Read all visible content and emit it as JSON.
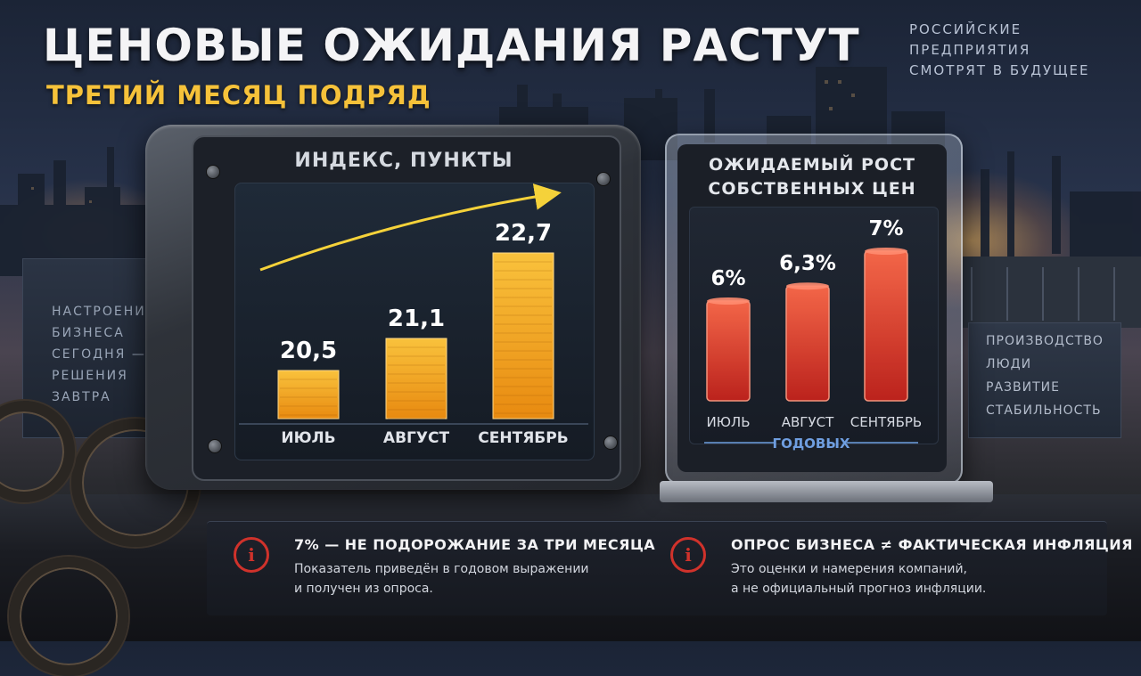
{
  "header": {
    "title": "ЦЕНОВЫЕ ОЖИДАНИЯ РАСТУТ",
    "subtitle": "ТРЕТИЙ МЕСЯЦ ПОДРЯД",
    "tagline": [
      "РОССИЙСКИЕ",
      "ПРЕДПРИЯТИЯ",
      "СМОТРЯТ В БУДУЩЕЕ"
    ]
  },
  "side_left": [
    "НАСТРОЕНИЯ",
    "БИЗНЕСА",
    "СЕГОДНЯ —",
    "РЕШЕНИЯ",
    "ЗАВТРА"
  ],
  "side_right": [
    "ПРОИЗВОДСТВО",
    "ЛЮДИ",
    "РАЗВИТИЕ",
    "СТАБИЛЬНОСТЬ"
  ],
  "chart_data": [
    {
      "type": "bar",
      "title": "ИНДЕКС, ПУНКТЫ",
      "categories": [
        "ИЮЛЬ",
        "АВГУСТ",
        "СЕНТЯБРЬ"
      ],
      "values": [
        20.5,
        21.1,
        22.7
      ],
      "value_labels": [
        "20,5",
        "21,1",
        "22,7"
      ],
      "trend_arrow": true,
      "colors": {
        "bar_top": "#f9c23c",
        "bar_bottom": "#e88a10",
        "arrow": "#f5d23a"
      }
    },
    {
      "type": "bar",
      "title": [
        "ОЖИДАЕМЫЙ РОСТ",
        "СОБСТВЕННЫХ ЦЕН"
      ],
      "categories": [
        "ИЮЛЬ",
        "АВГУСТ",
        "СЕНТЯБРЬ"
      ],
      "values": [
        6,
        6.3,
        7
      ],
      "value_labels": [
        "6%",
        "6,3%",
        "7%"
      ],
      "group_label": "ГОДОВЫХ",
      "colors": {
        "bar_top": "#ff6a4a",
        "bar_bottom": "#c4231c",
        "group_label": "#6f9ee0"
      }
    }
  ],
  "notes": [
    {
      "icon": "info-icon",
      "title": "7% — НЕ ПОДОРОЖАНИЕ ЗА ТРИ МЕСЯЦА",
      "lines": [
        "Показатель приведён в годовом выражении",
        "и получен из опроса."
      ]
    },
    {
      "icon": "info-icon",
      "title": "ОПРОС БИЗНЕСА ≠ ФАКТИЧЕСКАЯ ИНФЛЯЦИЯ",
      "lines": [
        "Это оценки и намерения компаний,",
        "а не официальный прогноз инфляции."
      ]
    }
  ],
  "colors": {
    "accent": "#f6c23a",
    "alert": "#d0322b"
  }
}
